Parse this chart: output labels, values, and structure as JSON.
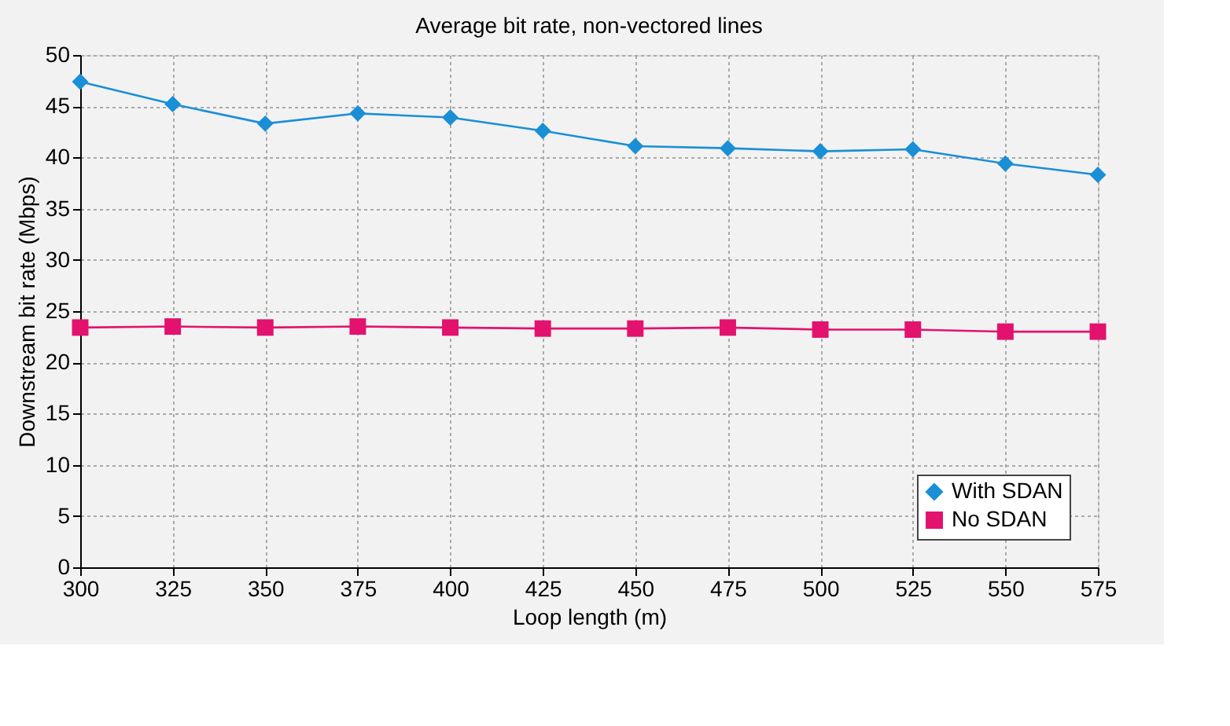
{
  "chart_data": {
    "type": "line",
    "title": "Average bit rate, non-vectored lines",
    "xlabel": "Loop length (m)",
    "ylabel": "Downstream bit rate (Mbps)",
    "x": [
      300,
      325,
      350,
      375,
      400,
      425,
      450,
      475,
      500,
      525,
      550,
      575
    ],
    "series": [
      {
        "name": "With SDAN",
        "color": "#1a8fd6",
        "marker": "diamond",
        "values": [
          47.4,
          45.2,
          43.3,
          44.3,
          43.9,
          42.6,
          41.1,
          40.9,
          40.6,
          40.8,
          39.4,
          38.3
        ]
      },
      {
        "name": "No SDAN",
        "color": "#e3126e",
        "marker": "square",
        "values": [
          23.4,
          23.5,
          23.4,
          23.5,
          23.4,
          23.3,
          23.3,
          23.4,
          23.2,
          23.2,
          23.0,
          23.0
        ]
      }
    ],
    "xlim": [
      300,
      575
    ],
    "xticks": [
      300,
      325,
      350,
      375,
      400,
      425,
      450,
      475,
      500,
      525,
      550,
      575
    ],
    "ylim": [
      0,
      50
    ],
    "yticks": [
      0,
      5,
      10,
      15,
      20,
      25,
      30,
      35,
      40,
      45,
      50
    ],
    "grid": true,
    "legend": "bottom right",
    "line_style": "solid"
  }
}
